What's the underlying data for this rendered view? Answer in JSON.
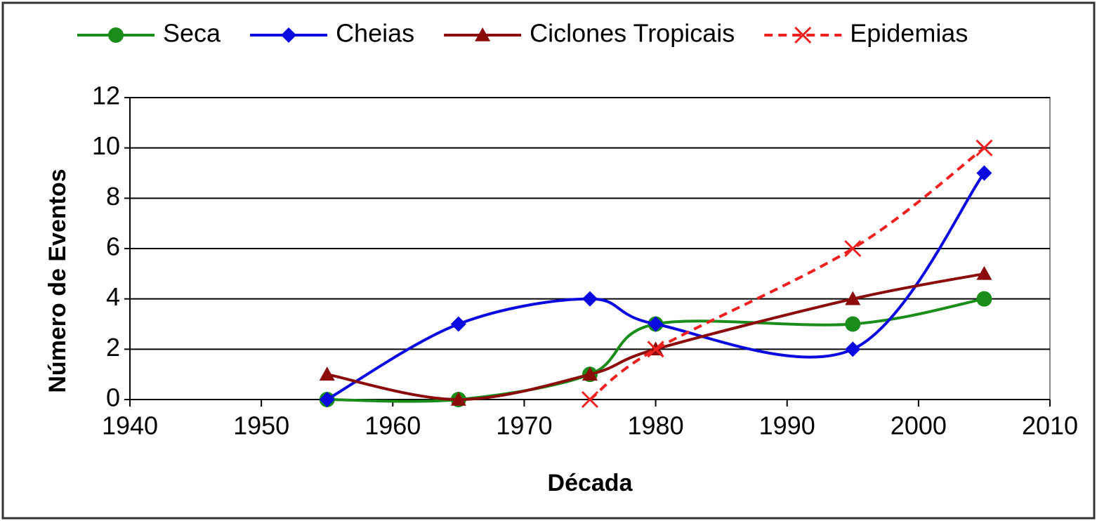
{
  "chart_data": {
    "type": "line",
    "smooth": true,
    "x": [
      1955,
      1965,
      1975,
      1980,
      1995,
      2005
    ],
    "series": [
      {
        "name": "Seca",
        "color": "#1a8c1a",
        "marker": "circle",
        "dash": false,
        "values": [
          0,
          0,
          1,
          3,
          3,
          4
        ]
      },
      {
        "name": "Cheias",
        "color": "#0a0ae0",
        "marker": "diamond",
        "dash": false,
        "values": [
          0,
          3,
          4,
          3,
          2,
          9
        ]
      },
      {
        "name": "Ciclones Tropicais",
        "color": "#8b0a0a",
        "marker": "triangle",
        "dash": false,
        "values": [
          1,
          0,
          1,
          2,
          4,
          5
        ]
      },
      {
        "name": "Epidemias",
        "color": "#f02020",
        "marker": "x",
        "dash": true,
        "values": [
          null,
          null,
          0,
          2,
          6,
          10
        ]
      }
    ],
    "xlabel": "Década",
    "ylabel": "Número de Eventos",
    "xlim": [
      1940,
      2010
    ],
    "xticks": [
      1940,
      1950,
      1960,
      1970,
      1980,
      1990,
      2000,
      2010
    ],
    "ylim": [
      0,
      12
    ],
    "yticks": [
      0,
      2,
      4,
      6,
      8,
      10,
      12
    ],
    "grid": true,
    "legend": "top"
  }
}
